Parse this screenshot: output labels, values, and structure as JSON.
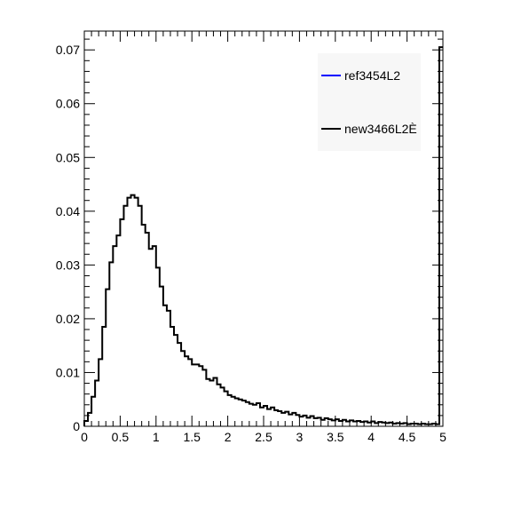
{
  "chart_data": {
    "type": "line",
    "xlim": [
      0,
      5
    ],
    "ylim": [
      0,
      0.0735
    ],
    "x_ticks": [
      "0",
      "0.5",
      "1",
      "1.5",
      "2",
      "2.5",
      "3",
      "3.5",
      "4",
      "4.5",
      "5"
    ],
    "y_ticks": [
      "0",
      "0.01",
      "0.02",
      "0.03",
      "0.04",
      "0.05",
      "0.06",
      "0.07"
    ],
    "bin_width": 0.05,
    "legend": {
      "placement": "top-right"
    },
    "series": [
      {
        "name": "ref3454L2",
        "color": "#0000ff",
        "values": []
      },
      {
        "name": "new3466L2È",
        "color": "#000000",
        "values": [
          0.001,
          0.0025,
          0.0055,
          0.0085,
          0.0125,
          0.0185,
          0.0255,
          0.0305,
          0.0335,
          0.0355,
          0.0385,
          0.041,
          0.0425,
          0.043,
          0.0425,
          0.041,
          0.0375,
          0.036,
          0.033,
          0.0335,
          0.0295,
          0.026,
          0.0225,
          0.0215,
          0.0185,
          0.017,
          0.0155,
          0.014,
          0.013,
          0.0125,
          0.0115,
          0.0115,
          0.0112,
          0.0105,
          0.0088,
          0.0085,
          0.009,
          0.0078,
          0.0072,
          0.0065,
          0.0058,
          0.0055,
          0.0052,
          0.005,
          0.0048,
          0.0045,
          0.0042,
          0.004,
          0.0043,
          0.0035,
          0.0038,
          0.0032,
          0.0035,
          0.003,
          0.0028,
          0.0025,
          0.0027,
          0.0022,
          0.0025,
          0.0021,
          0.0018,
          0.002,
          0.0016,
          0.0019,
          0.0015,
          0.0016,
          0.0012,
          0.0015,
          0.0013,
          0.0011,
          0.0013,
          0.001,
          0.0012,
          0.0009,
          0.0011,
          0.0009,
          0.001,
          0.0008,
          0.0009,
          0.0007,
          0.0009,
          0.0006,
          0.0008,
          0.0007,
          0.0006,
          0.0007,
          0.0005,
          0.0006,
          0.0005,
          0.0006,
          0.0004,
          0.0005,
          0.0005,
          0.0004,
          0.0005,
          0.0004,
          0.0004,
          0.0005,
          0.0004,
          0.0705
        ]
      }
    ]
  }
}
